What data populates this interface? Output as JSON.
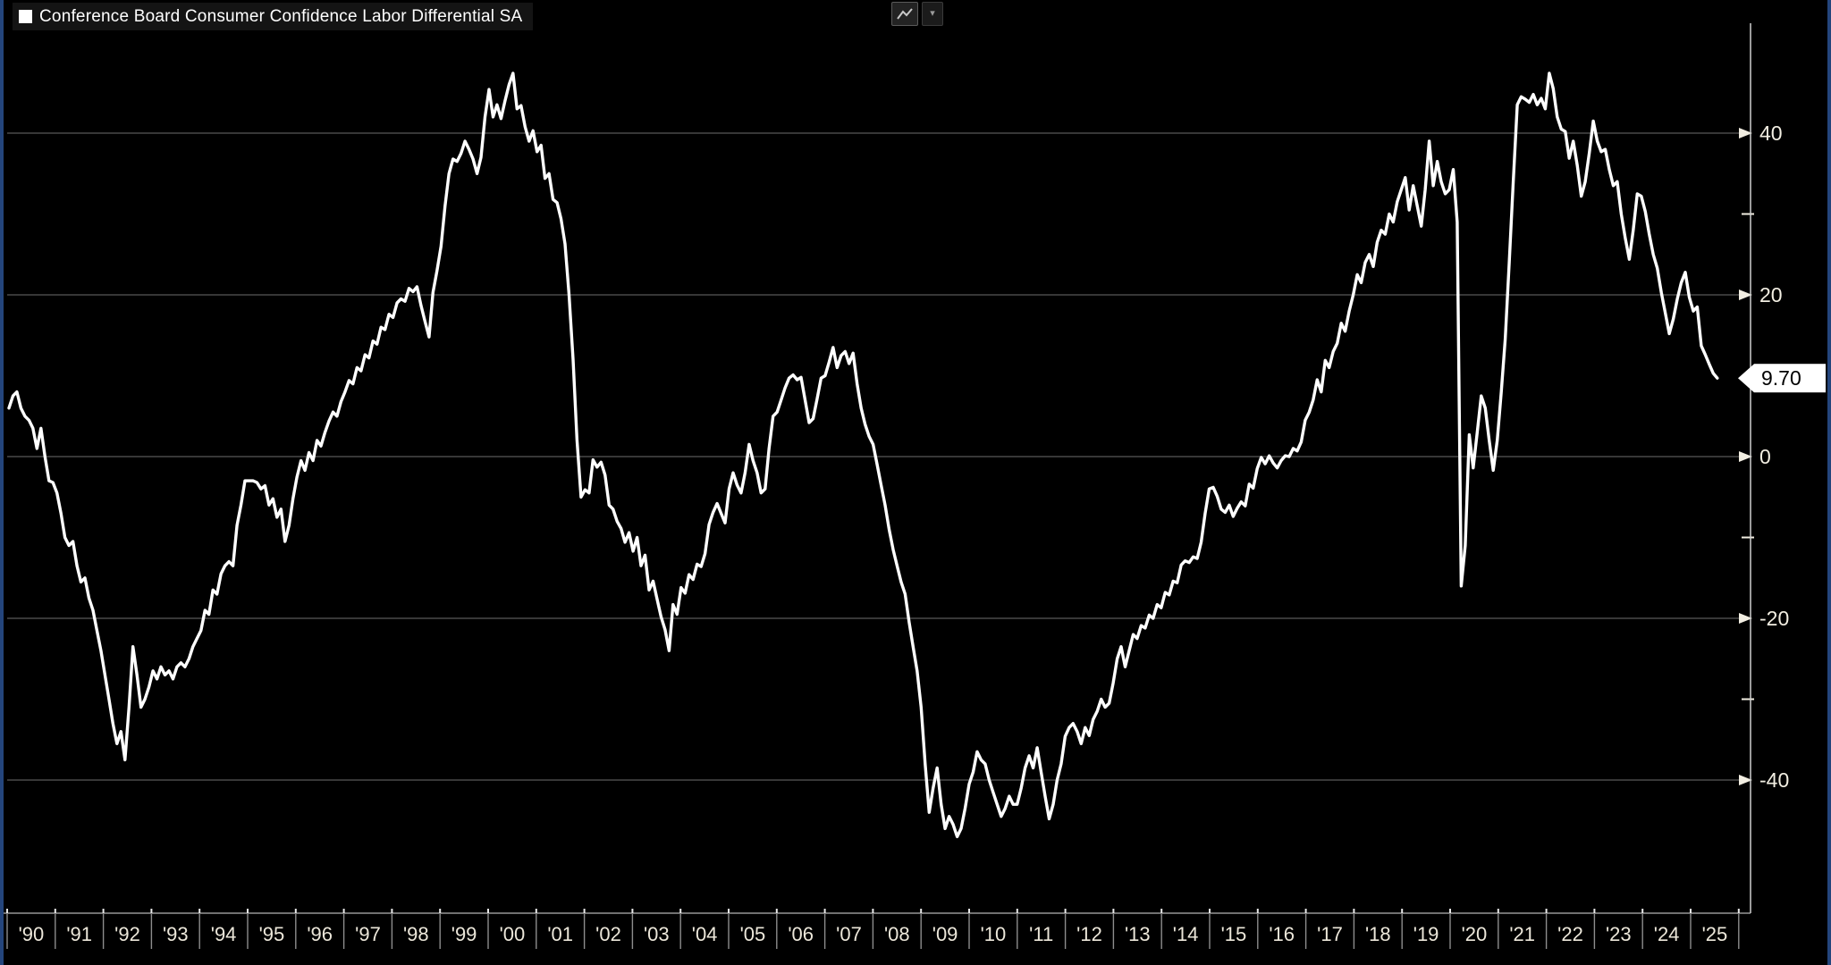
{
  "header": {
    "title": "Conference Board Consumer Confidence Labor Differential SA",
    "legend_marker_color": "#ffffff"
  },
  "toolbar": {
    "chart_type_button": "line-chart-icon",
    "dropdown_button": "caret-down"
  },
  "colors": {
    "background": "#000000",
    "line": "#ffffff",
    "gridline": "#6e6e6e",
    "axis_line": "#d0d0d0",
    "axis_label": "#f2eee2",
    "year_label": "#ece7da",
    "badge_bg": "#ffffff",
    "badge_text": "#000000",
    "panel_border": "#24457c",
    "title_bar_bg": "#141414"
  },
  "chart_data": {
    "type": "line",
    "title": "Conference Board Consumer Confidence Labor Differential SA",
    "frequency": "monthly",
    "start": "1990-01",
    "end": "2025-08",
    "last_value": 9.7,
    "last_value_label": "9.70",
    "grid": "horizontal-major",
    "legend_position": "top-left",
    "y_axis": {
      "side": "right",
      "major_ticks": [
        40,
        20,
        0,
        -20,
        -40
      ],
      "minor_ticks": [
        30,
        10,
        -10,
        -30
      ],
      "range": [
        -52,
        52
      ]
    },
    "x_axis": {
      "tick_labels": [
        "'90",
        "'91",
        "'92",
        "'93",
        "'94",
        "'95",
        "'96",
        "'97",
        "'98",
        "'99",
        "'00",
        "'01",
        "'02",
        "'03",
        "'04",
        "'05",
        "'06",
        "'07",
        "'08",
        "'09",
        "'10",
        "'11",
        "'12",
        "'13",
        "'14",
        "'15",
        "'16",
        "'17",
        "'18",
        "'19",
        "'20",
        "'21",
        "'22",
        "'23",
        "'24",
        "'25"
      ]
    },
    "values": [
      6,
      7.5,
      8,
      6,
      5,
      4.5,
      3.5,
      1,
      3.5,
      0,
      -3,
      -3.2,
      -4.5,
      -7,
      -10,
      -11,
      -10.5,
      -13.5,
      -15.5,
      -15,
      -17.5,
      -19,
      -21.5,
      -24,
      -27,
      -30,
      -33,
      -35.5,
      -34,
      -37.5,
      -31,
      -23.5,
      -27,
      -31,
      -30,
      -28.5,
      -26.5,
      -27.5,
      -26,
      -27,
      -26.5,
      -27.5,
      -26,
      -25.5,
      -26,
      -25,
      -23.5,
      -22.5,
      -21.5,
      -19,
      -19.5,
      -16.5,
      -17,
      -14.5,
      -13.5,
      -13,
      -13.5,
      -8.5,
      -6,
      -3,
      -3,
      -3,
      -3.2,
      -4,
      -3.6,
      -6,
      -5.2,
      -7.5,
      -6.5,
      -10.5,
      -8.5,
      -5.2,
      -2.5,
      -0.5,
      -1.7,
      0.5,
      -0.5,
      2,
      1.3,
      3,
      4.4,
      5.5,
      5,
      6.8,
      8,
      9.4,
      9,
      11,
      10.6,
      12.6,
      12.2,
      14.3,
      13.9,
      16,
      15.7,
      17.6,
      17.2,
      19,
      19.5,
      19.2,
      20.8,
      20.4,
      21,
      18.7,
      16.7,
      14.8,
      20.3,
      23,
      26,
      31,
      35,
      36.8,
      36.5,
      37.5,
      39,
      38,
      36.8,
      35,
      37,
      42,
      45.4,
      42,
      43.5,
      41.8,
      44,
      46,
      47.4,
      43,
      43.4,
      40.8,
      39,
      40.3,
      37.7,
      38.5,
      34.4,
      35,
      31.8,
      31.4,
      29.4,
      26.3,
      20,
      12,
      2,
      -5,
      -4.1,
      -4.5,
      -0.4,
      -1.3,
      -0.7,
      -2.3,
      -6,
      -6.5,
      -8,
      -8.9,
      -10.6,
      -9.4,
      -11.7,
      -10,
      -13.5,
      -12.2,
      -16.5,
      -15.4,
      -17.6,
      -19.8,
      -21.4,
      -24,
      -18.3,
      -19.5,
      -16.2,
      -16.9,
      -14.6,
      -15.2,
      -13.3,
      -13.6,
      -12,
      -8.4,
      -6.9,
      -5.8,
      -7,
      -8.2,
      -4,
      -2,
      -3.5,
      -4.5,
      -2,
      1.5,
      -0.5,
      -2,
      -4.5,
      -4,
      1,
      5,
      5.5,
      7,
      8.5,
      9.7,
      10.1,
      9.5,
      9.8,
      7,
      4.2,
      4.7,
      7.1,
      9.7,
      10,
      11.7,
      13.5,
      11,
      12.5,
      13,
      11.5,
      12.8,
      9,
      6,
      4,
      2.5,
      1.5,
      -1,
      -3.5,
      -6,
      -9,
      -11.5,
      -13.5,
      -15.5,
      -17,
      -20.5,
      -23.5,
      -26.5,
      -31,
      -38,
      -44,
      -41,
      -38.5,
      -43,
      -46,
      -44.5,
      -45.5,
      -47,
      -46,
      -43.5,
      -40.5,
      -39,
      -36.5,
      -37.5,
      -38,
      -40,
      -41.5,
      -43,
      -44.5,
      -43.5,
      -42,
      -43,
      -43,
      -41,
      -38.5,
      -37,
      -38.5,
      -36,
      -39,
      -42,
      -44.8,
      -43,
      -40,
      -38,
      -34.6,
      -33.5,
      -33,
      -34,
      -35.5,
      -33.5,
      -34.5,
      -32.5,
      -31.5,
      -30,
      -31,
      -30.5,
      -28,
      -25,
      -23.5,
      -26,
      -24,
      -22,
      -22.5,
      -20.9,
      -21.2,
      -19.6,
      -20,
      -18.3,
      -18.7,
      -16.8,
      -17.1,
      -15.4,
      -15.6,
      -13.4,
      -12.9,
      -13.1,
      -12.4,
      -12.6,
      -10.6,
      -7,
      -4,
      -3.8,
      -4.9,
      -6.5,
      -6.9,
      -6,
      -7.4,
      -6.4,
      -5.6,
      -6.1,
      -3.4,
      -3.9,
      -1.5,
      -0.1,
      -0.9,
      0.1,
      -0.8,
      -1.4,
      -0.5,
      0.1,
      0,
      1,
      0.7,
      1.8,
      4.5,
      5.5,
      7,
      9.5,
      8,
      11.9,
      11,
      13,
      14,
      16.5,
      15.5,
      18,
      20,
      22.5,
      21.5,
      24,
      25,
      23.5,
      26.5,
      28,
      27.5,
      30,
      29,
      31.5,
      33,
      34.5,
      30.5,
      33.5,
      31,
      28.5,
      33,
      39,
      33.5,
      36.5,
      34,
      32.5,
      33,
      35.5,
      29,
      -16,
      -11,
      2.7,
      -1.4,
      3,
      7.5,
      6,
      2,
      -1.7,
      2,
      8,
      14.5,
      24,
      34,
      43.5,
      44.5,
      44.2,
      43.8,
      44.8,
      43.5,
      44.3,
      43,
      47.4,
      45.5,
      42,
      40.5,
      40.2,
      36.9,
      39,
      36,
      32.2,
      34,
      37.5,
      41.5,
      39,
      37.7,
      38,
      35.5,
      33.5,
      34,
      30,
      27,
      24.4,
      28,
      32.5,
      32.2,
      30.3,
      27.5,
      25,
      23.3,
      20.3,
      17.8,
      15.2,
      17,
      19.5,
      21.5,
      22.8,
      19.7,
      18,
      18.5,
      13.7,
      12.6,
      11.4,
      10.3,
      9.7
    ]
  }
}
